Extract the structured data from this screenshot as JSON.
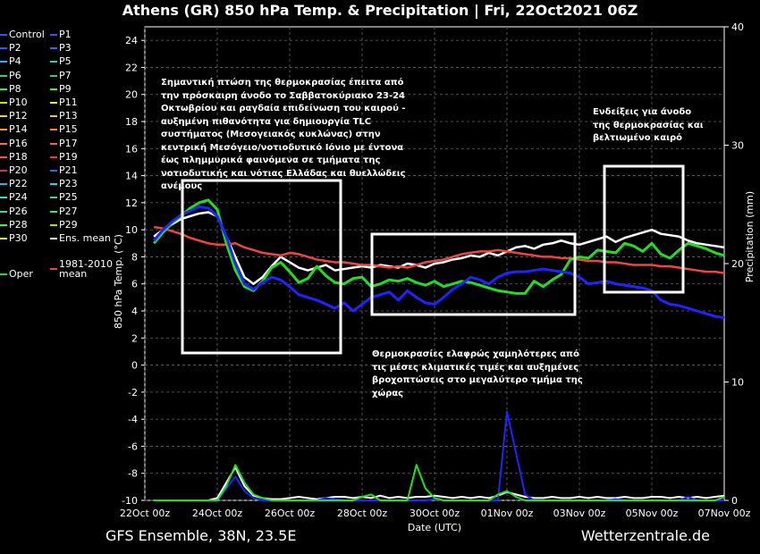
{
  "header": {
    "title": "Athens  (GR)  850 hPa Temp. & Precipitation | Fri, 22Oct2021 06Z"
  },
  "footer": {
    "left": "GFS Ensemble, 38N, 23.5E",
    "right": "Wetterzentrale.de"
  },
  "legend": [
    {
      "label": "Control",
      "color": "#3355ff"
    },
    {
      "label": "P1",
      "color": "#3355ff"
    },
    {
      "label": "P2",
      "color": "#3355ff"
    },
    {
      "label": "P3",
      "color": "#3366ff"
    },
    {
      "label": "P4",
      "color": "#33aaff"
    },
    {
      "label": "P5",
      "color": "#33ccbb"
    },
    {
      "label": "P6",
      "color": "#33cc88"
    },
    {
      "label": "P7",
      "color": "#33cc66"
    },
    {
      "label": "P8",
      "color": "#33ee44"
    },
    {
      "label": "P9",
      "color": "#55ee22"
    },
    {
      "label": "P10",
      "color": "#aaee22"
    },
    {
      "label": "P11",
      "color": "#eeee33"
    },
    {
      "label": "P12",
      "color": "#eecc44"
    },
    {
      "label": "P13",
      "color": "#eebb55"
    },
    {
      "label": "P14",
      "color": "#ee9944"
    },
    {
      "label": "P15",
      "color": "#ee8833"
    },
    {
      "label": "P16",
      "color": "#ee7744"
    },
    {
      "label": "P17",
      "color": "#ee6655"
    },
    {
      "label": "P18",
      "color": "#ee5555"
    },
    {
      "label": "P19",
      "color": "#ee3366"
    },
    {
      "label": "P20",
      "color": "#dd2288"
    },
    {
      "label": "P21",
      "color": "#3366ff"
    },
    {
      "label": "P22",
      "color": "#33aaff"
    },
    {
      "label": "P23",
      "color": "#33ccff"
    },
    {
      "label": "P24",
      "color": "#33ddcc"
    },
    {
      "label": "P25",
      "color": "#33dd99"
    },
    {
      "label": "P26",
      "color": "#33dd77"
    },
    {
      "label": "P27",
      "color": "#33ee55"
    },
    {
      "label": "P28",
      "color": "#55ee33"
    },
    {
      "label": "P29",
      "color": "#88ee22"
    },
    {
      "label": "P30",
      "color": "#ffff33"
    },
    {
      "label": "Ens. mean",
      "color": "#ffffff"
    },
    {
      "label": "1981-2010 mean",
      "color": "#ee4444"
    },
    {
      "label": "Oper",
      "color": "#22dd22"
    }
  ],
  "annotations": [
    {
      "text": "Σημαντική πτώση της θερμοκρασίας έπειτα από την πρόσκαιρη άνοδο το Σαββατοκύριακο 23-24 Οκτωβρίου και ραγδαία επιδείνωση του καιρού - αυξημένη πιθανότητα για δημιουργία TLC συστήματος (Μεσογειακός κυκλώνας) στην κεντρική Μεσόγειο/νοτιοδυτικό Ιόνιο με έντονα έως πλημμυρικά φαινόμενα σε τμήματα της νοτιοδυτικής και νότιας Ελλάδας και θυελλώδεις ανέμους"
    },
    {
      "text": "Θερμοκρασίες ελαφρώς χαμηλότερες από τις μέσες κλιματικές τιμές και αυξημένες βροχοπτώσεις στο μεγαλύτερο τμήμα της χώρας"
    },
    {
      "text": "Ενδείξεις για άνοδο της θερμοκρασίας και βελτιωμένο καιρό"
    }
  ],
  "chart_data": {
    "type": "line",
    "xlabel": "Date (UTC)",
    "ylabel": "850 hPa Temp. (°C)",
    "ylabel_right": "Precipitation (mm)",
    "ylim": [
      -10,
      25
    ],
    "ylim_right": [
      0,
      40
    ],
    "x_ticks": [
      "22Oct 00z",
      "24Oct 00z",
      "26Oct 00z",
      "28Oct 00z",
      "30Oct 00z",
      "01Nov 00z",
      "03Nov 00z",
      "05Nov 00z",
      "07Nov 00z"
    ],
    "y_ticks": [
      24,
      22,
      20,
      18,
      16,
      14,
      12,
      10,
      8,
      6,
      4,
      2,
      0,
      -2,
      -4,
      -6,
      -8,
      -10
    ],
    "y_ticks_right": [
      40,
      30,
      20,
      10,
      0
    ],
    "grid": true,
    "x_hours": [
      6,
      12,
      18,
      24,
      30,
      36,
      42,
      48,
      54,
      60,
      66,
      72,
      78,
      84,
      90,
      96,
      102,
      108,
      114,
      120,
      126,
      132,
      138,
      144,
      150,
      156,
      162,
      168,
      174,
      180,
      186,
      192,
      198,
      204,
      210,
      216,
      222,
      228,
      234,
      240,
      246,
      252,
      258,
      264,
      270,
      276,
      282,
      288,
      294,
      300,
      306,
      312,
      318,
      324,
      330,
      336,
      342,
      348,
      354,
      360,
      366,
      372,
      378,
      384
    ],
    "series": [
      {
        "name": "Ens. mean",
        "color": "#ffffff",
        "values": [
          9.5,
          10.0,
          10.4,
          10.8,
          11.0,
          11.2,
          11.3,
          11.0,
          9.5,
          8.0,
          6.5,
          6.0,
          6.5,
          7.3,
          8.0,
          7.6,
          7.2,
          7.0,
          7.2,
          7.4,
          7.0,
          7.1,
          7.2,
          7.3,
          7.2,
          7.4,
          7.3,
          7.2,
          7.5,
          7.4,
          7.2,
          7.5,
          7.6,
          7.8,
          7.9,
          8.1,
          8.0,
          8.3,
          8.1,
          8.4,
          8.7,
          8.8,
          8.6,
          8.9,
          9.0,
          9.2,
          9.0,
          8.9,
          9.1,
          9.3,
          9.5,
          9.1,
          9.4,
          9.6,
          9.8,
          10.0,
          9.7,
          9.6,
          9.5,
          9.2,
          9.0,
          8.9,
          8.8,
          8.7
        ]
      },
      {
        "name": "1981-2010 mean",
        "color": "#ee4444",
        "values": [
          10.2,
          10.1,
          9.9,
          9.7,
          9.4,
          9.2,
          9.0,
          8.9,
          8.9,
          9.0,
          8.7,
          8.5,
          8.3,
          8.2,
          8.1,
          8.3,
          8.2,
          8.0,
          7.8,
          7.7,
          7.6,
          7.6,
          7.5,
          7.4,
          7.4,
          7.3,
          7.2,
          7.3,
          7.2,
          7.4,
          7.6,
          7.7,
          7.8,
          8.0,
          8.2,
          8.3,
          8.4,
          8.4,
          8.5,
          8.4,
          8.3,
          8.2,
          8.1,
          8.0,
          8.0,
          7.9,
          7.9,
          7.8,
          7.7,
          7.7,
          7.6,
          7.6,
          7.5,
          7.4,
          7.4,
          7.4,
          7.3,
          7.3,
          7.2,
          7.1,
          7.0,
          6.9,
          6.9,
          6.8
        ]
      },
      {
        "name": "Oper",
        "color": "#22dd22",
        "values": [
          9.0,
          9.8,
          10.5,
          11.0,
          11.6,
          12.0,
          12.2,
          11.5,
          9.0,
          7.0,
          5.8,
          5.5,
          6.2,
          7.2,
          7.6,
          6.9,
          6.1,
          6.4,
          7.3,
          6.6,
          6.1,
          6.0,
          6.4,
          6.5,
          5.8,
          6.0,
          6.3,
          6.2,
          6.4,
          6.1,
          5.9,
          6.2,
          5.8,
          6.0,
          6.2,
          6.1,
          5.9,
          5.7,
          5.5,
          5.4,
          5.3,
          5.3,
          6.2,
          5.8,
          6.3,
          6.7,
          7.8,
          8.0,
          7.9,
          8.5,
          8.4,
          8.3,
          9.0,
          8.8,
          8.4,
          9.0,
          8.2,
          7.9,
          8.5,
          9.0,
          8.8,
          8.6,
          8.3,
          8.1
        ]
      },
      {
        "name": "Control",
        "color": "#2222ff",
        "values": [
          9.2,
          10.0,
          10.6,
          11.1,
          11.4,
          11.7,
          11.6,
          11.0,
          9.5,
          7.5,
          6.0,
          5.6,
          6.1,
          6.5,
          6.3,
          5.8,
          5.2,
          5.0,
          4.8,
          4.5,
          4.2,
          4.6,
          4.0,
          4.5,
          5.0,
          5.2,
          5.4,
          4.8,
          5.5,
          5.0,
          4.6,
          4.5,
          5.0,
          5.6,
          6.0,
          6.5,
          6.3,
          6.0,
          6.5,
          6.8,
          6.9,
          6.9,
          7.0,
          7.1,
          7.0,
          6.9,
          6.8,
          6.5,
          6.0,
          6.1,
          6.2,
          6.0,
          5.9,
          5.8,
          5.7,
          5.5,
          4.8,
          4.5,
          4.4,
          4.2,
          4.0,
          3.8,
          3.6,
          3.5
        ]
      }
    ],
    "precip_series": [
      {
        "name": "Ens. mean",
        "color": "#ffffff",
        "values": [
          0,
          0,
          0,
          0,
          0,
          0,
          0,
          0.2,
          1.5,
          2.8,
          1.2,
          0.4,
          0.2,
          0.1,
          0.1,
          0.2,
          0.3,
          0.2,
          0.1,
          0.2,
          0.3,
          0.3,
          0.2,
          0.3,
          0.2,
          0.4,
          0.2,
          0.3,
          0.2,
          0.3,
          0.3,
          0.4,
          0.3,
          0.2,
          0.3,
          0.2,
          0.3,
          0.2,
          0.4,
          0.7,
          0.5,
          0.3,
          0.2,
          0.2,
          0.3,
          0.2,
          0.2,
          0.3,
          0.2,
          0.3,
          0.2,
          0.2,
          0.3,
          0.2,
          0.2,
          0.3,
          0.3,
          0.2,
          0.3,
          0.2,
          0.3,
          0.2,
          0.3,
          0.4
        ]
      },
      {
        "name": "Control",
        "color": "#2222ff",
        "values": [
          0,
          0,
          0,
          0,
          0,
          0,
          0,
          0,
          1.0,
          2.0,
          0.8,
          0.2,
          0,
          0,
          0,
          0,
          0,
          0,
          0,
          0.2,
          0.1,
          0,
          0,
          0,
          0,
          0,
          0,
          0,
          0,
          0,
          0,
          0.1,
          0,
          0,
          0,
          0,
          0,
          0,
          0,
          7.5,
          4.0,
          0.5,
          0,
          0,
          0,
          0,
          0,
          0,
          0,
          0,
          0,
          0.1,
          0,
          0,
          0,
          0,
          0,
          0,
          0,
          0.3,
          0,
          0,
          0,
          0
        ]
      },
      {
        "name": "Oper",
        "color": "#22dd22",
        "values": [
          0,
          0,
          0,
          0,
          0,
          0,
          0,
          0,
          1.2,
          3.0,
          1.5,
          0.5,
          0.2,
          0,
          0,
          0,
          0,
          0,
          0,
          0,
          0,
          0,
          0,
          0.3,
          0.5,
          0,
          0,
          0,
          0,
          3.0,
          1.0,
          0.2,
          0,
          0,
          0,
          0,
          0,
          0,
          0.5,
          0.8,
          0.3,
          0,
          0,
          0,
          0,
          0,
          0,
          0,
          0,
          0,
          0,
          0,
          0,
          0,
          0,
          0,
          0,
          0,
          0,
          0,
          0,
          0,
          0,
          0.3
        ]
      }
    ]
  }
}
